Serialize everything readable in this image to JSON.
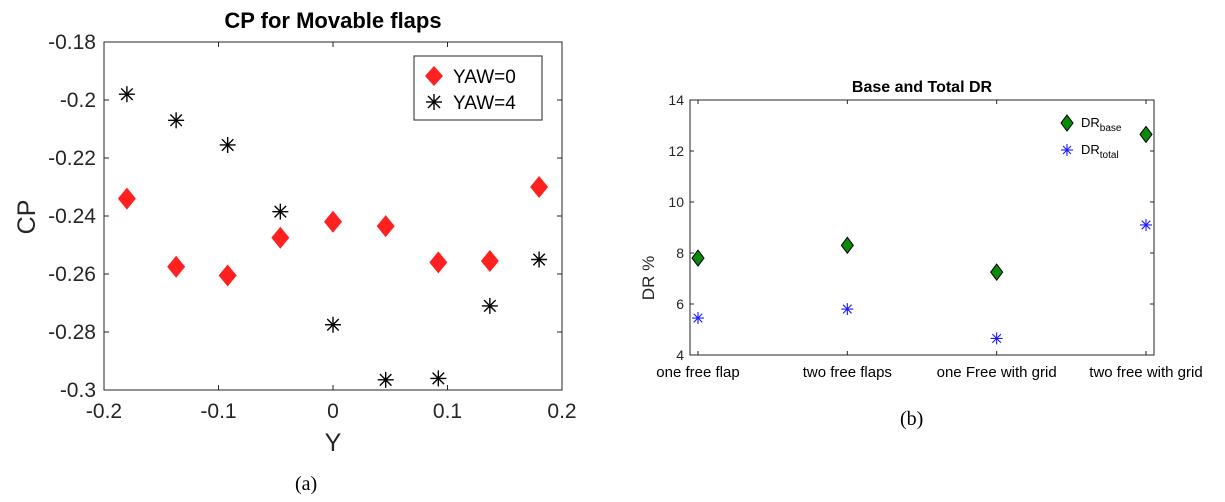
{
  "captions": {
    "a": "(a)",
    "b": "(b)"
  },
  "colors": {
    "diamond_red": "#ff2020",
    "star_black": "#000000",
    "diamond_green": "#0a8a0a",
    "star_blue": "#1a1aff"
  },
  "chart_data": [
    {
      "type": "scatter",
      "title": "CP for Movable flaps",
      "xlabel": "Y",
      "ylabel": "CP",
      "xlim": [
        -0.2,
        0.2
      ],
      "ylim": [
        -0.3,
        -0.18
      ],
      "y_reversed": true,
      "xticks": [
        "-0.2",
        "-0.1",
        "0",
        "0.1",
        "0.2"
      ],
      "yticks": [
        "-0.18",
        "-0.2",
        "-0.22",
        "-0.24",
        "-0.26",
        "-0.28",
        "-0.3"
      ],
      "legend_position": "top-right",
      "series": [
        {
          "name": "YAW=0",
          "marker": "diamond",
          "x": [
            -0.18,
            -0.137,
            -0.092,
            -0.046,
            0,
            0.046,
            0.092,
            0.137,
            0.18
          ],
          "y": [
            -0.234,
            -0.2575,
            -0.2605,
            -0.2475,
            -0.242,
            -0.2435,
            -0.256,
            -0.2555,
            -0.23
          ]
        },
        {
          "name": "YAW=4",
          "marker": "asterisk",
          "x": [
            -0.18,
            -0.137,
            -0.092,
            -0.046,
            0,
            0.046,
            0.092,
            0.137,
            0.18
          ],
          "y": [
            -0.198,
            -0.207,
            -0.2155,
            -0.2385,
            -0.2775,
            -0.2965,
            -0.296,
            -0.271,
            -0.255
          ]
        }
      ]
    },
    {
      "type": "scatter",
      "title": "Base and Total DR",
      "xlabel": "",
      "ylabel": "DR %",
      "ylim": [
        4,
        14
      ],
      "yticks": [
        "4",
        "6",
        "8",
        "10",
        "12",
        "14"
      ],
      "categories": [
        "one free flap",
        "two free flaps",
        "one Free with grid",
        "two free with grid"
      ],
      "legend_position": "top-right",
      "series": [
        {
          "name_main": "DR",
          "name_sub": "base",
          "marker": "diamond",
          "values": [
            7.8,
            8.3,
            7.25,
            12.65
          ]
        },
        {
          "name_main": "DR",
          "name_sub": "total",
          "marker": "asterisk",
          "values": [
            5.45,
            5.8,
            4.65,
            9.1
          ]
        }
      ]
    }
  ]
}
